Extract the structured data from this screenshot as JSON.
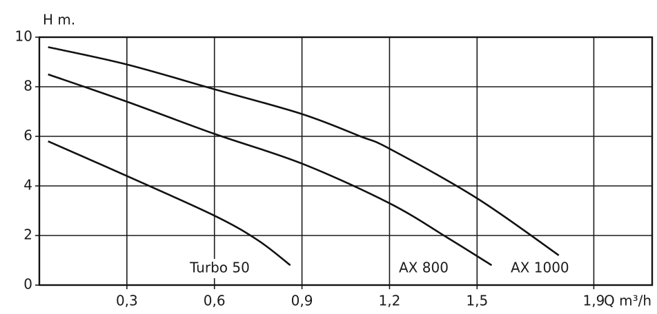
{
  "chart_data": {
    "type": "line",
    "y_label": "H m.",
    "x_label": "Q m³/h",
    "xlim": [
      0,
      2.1
    ],
    "xticks": [
      {
        "value": 0.3,
        "label": "0,3"
      },
      {
        "value": 0.6,
        "label": "0,6"
      },
      {
        "value": 0.9,
        "label": "0,9"
      },
      {
        "value": 1.2,
        "label": "1,2"
      },
      {
        "value": 1.5,
        "label": "1,5"
      },
      {
        "value": 1.9,
        "label": "1,9"
      }
    ],
    "ylim": [
      0,
      10
    ],
    "yticks": [
      0,
      2,
      4,
      6,
      8,
      10
    ],
    "grid": true,
    "series": [
      {
        "name": "Turbo 50",
        "color": "#111111",
        "x": [
          0.03,
          0.3,
          0.6,
          0.75,
          0.86
        ],
        "values": [
          5.8,
          4.4,
          2.8,
          1.8,
          0.8
        ]
      },
      {
        "name": "AX 800",
        "color": "#111111",
        "x": [
          0.03,
          0.3,
          0.6,
          0.9,
          1.2,
          1.4,
          1.55
        ],
        "values": [
          8.5,
          7.4,
          6.1,
          4.9,
          3.3,
          1.9,
          0.8
        ]
      },
      {
        "name": "AX 1000",
        "color": "#111111",
        "x": [
          0.03,
          0.3,
          0.6,
          0.9,
          1.1,
          1.2,
          1.5,
          1.78
        ],
        "values": [
          9.6,
          8.9,
          7.9,
          6.9,
          6.0,
          5.5,
          3.5,
          1.2
        ]
      }
    ]
  }
}
